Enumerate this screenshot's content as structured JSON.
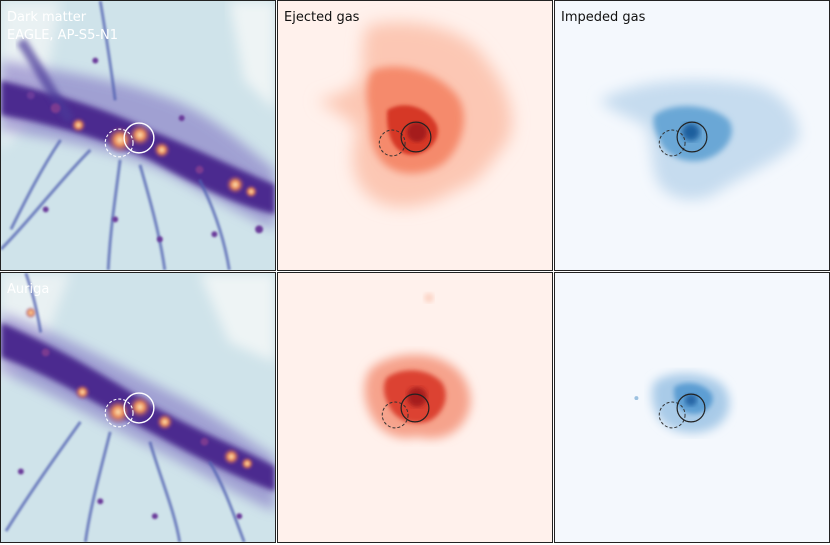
{
  "panels": {
    "dm_top": {
      "title": "Dark matter",
      "subtitle": "EAGLE, AP-S5-N1"
    },
    "ej_top": {
      "title": "Ejected gas"
    },
    "im_top": {
      "title": "Impeded gas"
    },
    "dm_bottom": {
      "title": "Auriga"
    }
  },
  "colors": {
    "dm_bg": "#d6e6ec",
    "dm_filament": "#5a3fa0",
    "dm_core": "#f2b27a",
    "ejected_bg": "#fff1ec",
    "ejected_gas": "#e2452f",
    "impeded_bg": "#f4f8fd",
    "impeded_gas": "#3f88c5"
  }
}
